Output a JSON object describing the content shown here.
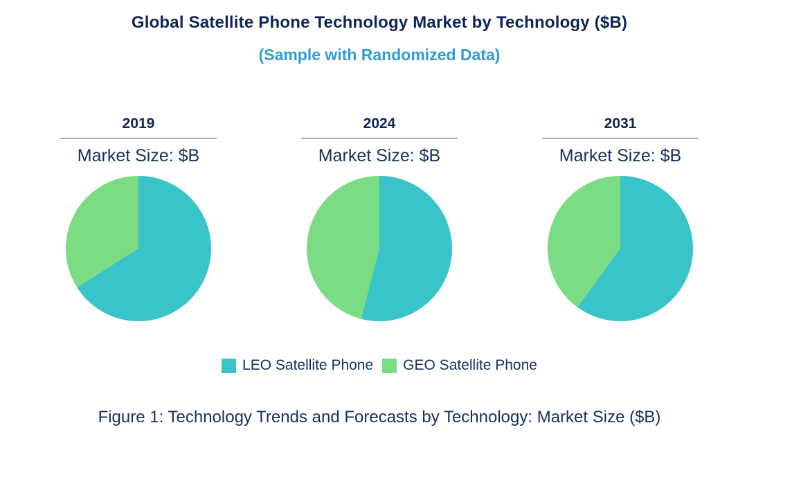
{
  "caption": "Figure 1: Technology Trends and Forecasts by Technology: Market Size ($B)",
  "colors": {
    "title_text": "#0f2557",
    "subtitle_text": "#2e9cd9",
    "body_text": "#16325e",
    "leo_teal": "#38c4c8",
    "geo_green": "#7adc83",
    "divider": "#4d4d4d"
  },
  "chart_data": {
    "type": "pie",
    "title": "Global Satellite Phone Technology Market by Technology ($B)",
    "subtitle": "(Sample with Randomized Data)",
    "legend_position": "bottom",
    "grid": false,
    "series": [
      {
        "name": "LEO Satellite Phone",
        "color": "#38c4c8"
      },
      {
        "name": "GEO Satellite Phone",
        "color": "#7adc83"
      }
    ],
    "pies": [
      {
        "year": "2019",
        "label": "Market Size: $B",
        "shares_pct": [
          66,
          34
        ]
      },
      {
        "year": "2024",
        "label": "Market Size: $B",
        "shares_pct": [
          54,
          46
        ]
      },
      {
        "year": "2031",
        "label": "Market Size: $B",
        "shares_pct": [
          60,
          40
        ]
      }
    ]
  }
}
